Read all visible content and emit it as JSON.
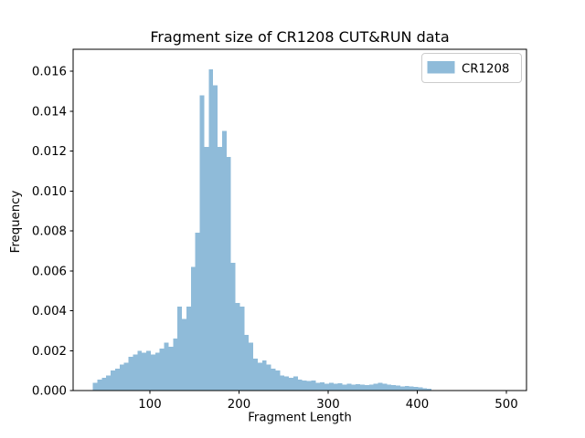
{
  "figure": {
    "background": "#ffffff",
    "text_color": "#000000",
    "spine_color": "#000000",
    "legend_border_color": "#cccccc",
    "legend_face_color": "#ffffff"
  },
  "chart_data": {
    "type": "bar",
    "subtype": "histogram",
    "title": "Fragment size of CR1208 CUT&RUN data",
    "xlabel": "Fragment Length",
    "ylabel": "Frequency",
    "legend": {
      "entries": [
        "CR1208"
      ],
      "position": "upper right"
    },
    "bar_color": "#8FBBD9",
    "grid": false,
    "xlim": [
      14,
      523
    ],
    "ylim": [
      0,
      0.0171
    ],
    "xticks": [
      100,
      200,
      300,
      400,
      500
    ],
    "xticklabels": [
      "100",
      "200",
      "300",
      "400",
      "500"
    ],
    "yticks": [
      0,
      0.002,
      0.004,
      0.006,
      0.008,
      0.01,
      0.012,
      0.014,
      0.016
    ],
    "yticklabels": [
      "0.000",
      "0.002",
      "0.004",
      "0.006",
      "0.008",
      "0.010",
      "0.012",
      "0.014",
      "0.016"
    ],
    "bin_start": 36,
    "bin_width": 5,
    "frequencies": [
      0.0004,
      0.00055,
      0.00065,
      0.00075,
      0.001,
      0.0011,
      0.0013,
      0.0014,
      0.0017,
      0.0018,
      0.002,
      0.0019,
      0.002,
      0.0018,
      0.0019,
      0.0021,
      0.0024,
      0.0022,
      0.0026,
      0.0042,
      0.0036,
      0.0042,
      0.0062,
      0.0079,
      0.0148,
      0.0122,
      0.0161,
      0.0153,
      0.0122,
      0.013,
      0.0117,
      0.0064,
      0.0044,
      0.0042,
      0.0028,
      0.0024,
      0.0016,
      0.0014,
      0.0015,
      0.0013,
      0.0011,
      0.001,
      0.00075,
      0.0007,
      0.00065,
      0.0007,
      0.00055,
      0.0005,
      0.00047,
      0.0005,
      0.0004,
      0.00042,
      0.00035,
      0.0004,
      0.00035,
      0.00037,
      0.0003,
      0.00035,
      0.0003,
      0.00032,
      0.0003,
      0.00028,
      0.0003,
      0.00035,
      0.0004,
      0.00035,
      0.0003,
      0.00028,
      0.00025,
      0.0002,
      0.00022,
      0.0002,
      0.00018,
      0.00015,
      0.00012,
      0.0001
    ]
  }
}
